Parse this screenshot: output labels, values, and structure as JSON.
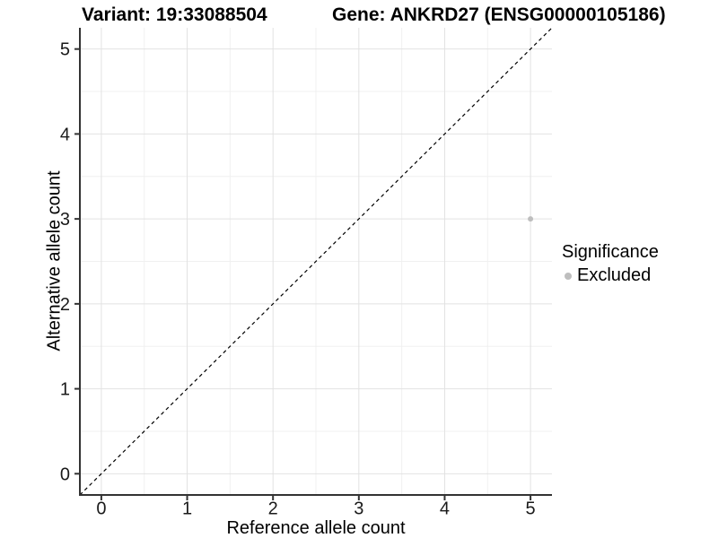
{
  "chart_data": {
    "type": "scatter",
    "title_left": "Variant: 19:33088504",
    "title_right": "Gene: ANKRD27 (ENSG00000105186)",
    "xlabel": "Reference allele count",
    "ylabel": "Alternative allele count",
    "xlim": [
      -0.25,
      5.25
    ],
    "ylim": [
      -0.25,
      5.25
    ],
    "xticks": [
      0,
      1,
      2,
      3,
      4,
      5
    ],
    "yticks": [
      0,
      1,
      2,
      3,
      4,
      5
    ],
    "xticks_minor": [
      0.5,
      1.5,
      2.5,
      3.5,
      4.5
    ],
    "yticks_minor": [
      0.5,
      1.5,
      2.5,
      3.5,
      4.5
    ],
    "grid": "major+minor",
    "points": [
      {
        "x": 5,
        "y": 3,
        "series": "Excluded"
      }
    ],
    "point_radius_px": 3,
    "reference_line": {
      "kind": "identity",
      "slope": 1,
      "intercept": 0,
      "style": "dashed",
      "color": "#000000"
    },
    "legend": {
      "title": "Significance",
      "position": "right",
      "entries": [
        {
          "label": "Excluded",
          "color": "#bebebe"
        }
      ]
    },
    "colors": {
      "point": "#bebebe",
      "grid_major": "#e2e2e2",
      "grid_minor": "#f0f0f0",
      "axis_line": "#333333",
      "tick_label": "#1a1a1a"
    }
  }
}
